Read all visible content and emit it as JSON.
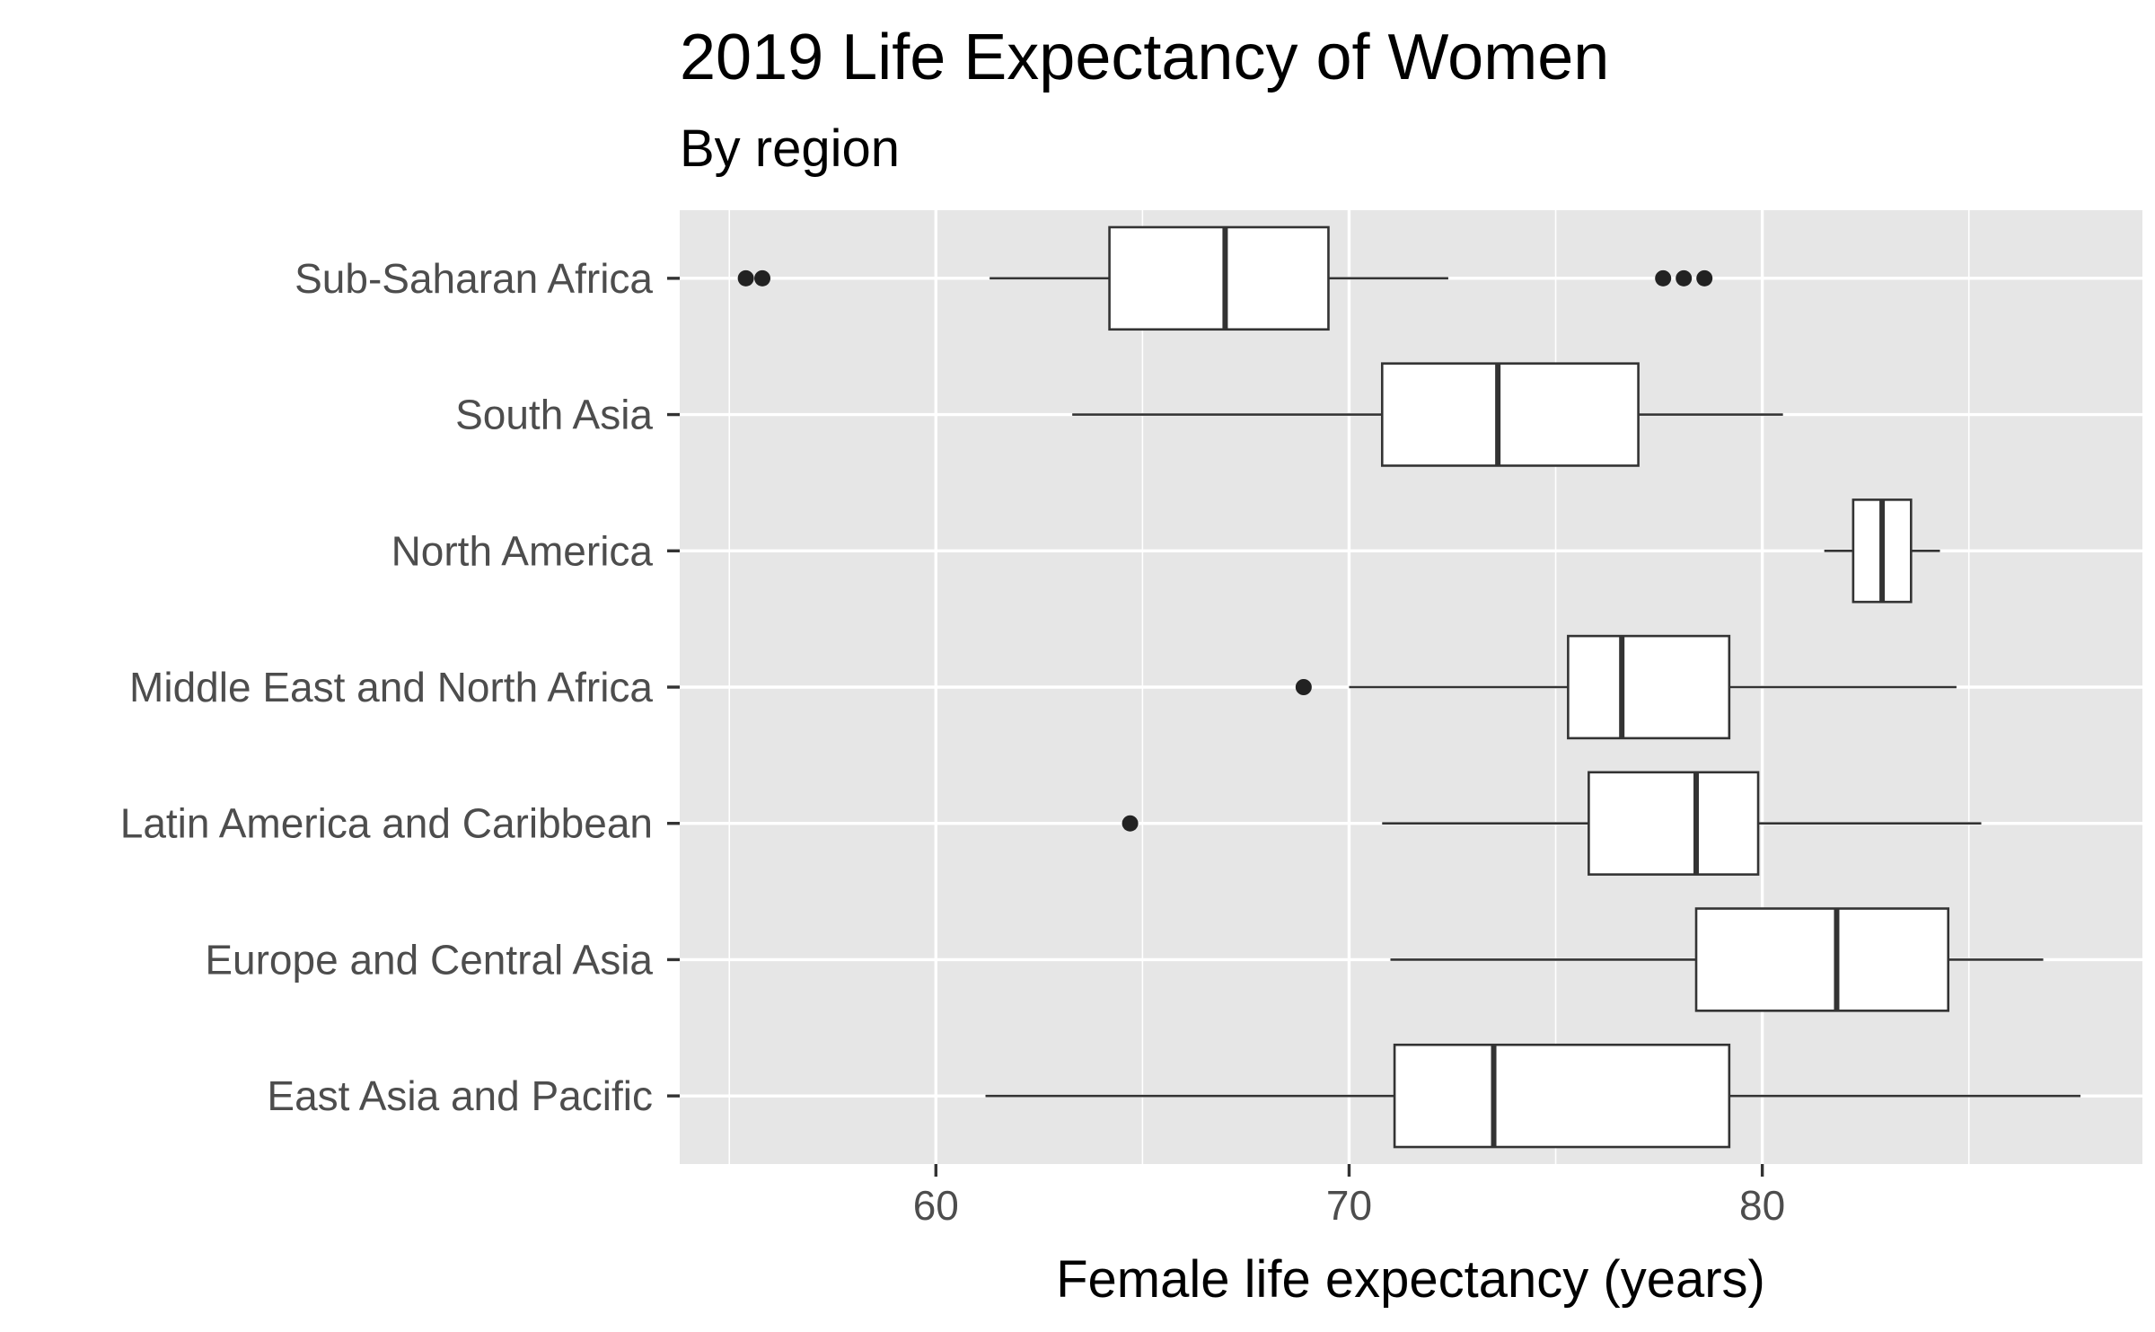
{
  "chart_data": {
    "type": "boxplot",
    "orientation": "horizontal",
    "title": "2019 Life Expectancy of Women",
    "subtitle": "By region",
    "xlabel": "Female life expectancy (years)",
    "ylabel": "",
    "xlim": [
      53.8,
      89.2
    ],
    "x_ticks": [
      60,
      70,
      80
    ],
    "x_tick_labels": [
      "60",
      "70",
      "80"
    ],
    "x_minor_ticks": [
      55,
      65,
      75,
      85
    ],
    "grid": true,
    "legend": "none",
    "categories": [
      "Sub-Saharan Africa",
      "South Asia",
      "North America",
      "Middle East and North Africa",
      "Latin America and Caribbean",
      "Europe and Central Asia",
      "East Asia and Pacific"
    ],
    "boxes": [
      {
        "category": "Sub-Saharan Africa",
        "whisker_low": 61.3,
        "q1": 64.2,
        "median": 67.0,
        "q3": 69.5,
        "whisker_high": 72.4,
        "outliers": [
          55.4,
          55.8,
          77.6,
          78.1,
          78.6
        ]
      },
      {
        "category": "South Asia",
        "whisker_low": 63.3,
        "q1": 70.8,
        "median": 73.6,
        "q3": 77.0,
        "whisker_high": 80.5,
        "outliers": []
      },
      {
        "category": "North America",
        "whisker_low": 81.5,
        "q1": 82.2,
        "median": 82.9,
        "q3": 83.6,
        "whisker_high": 84.3,
        "outliers": []
      },
      {
        "category": "Middle East and North Africa",
        "whisker_low": 70.0,
        "q1": 75.3,
        "median": 76.6,
        "q3": 79.2,
        "whisker_high": 84.7,
        "outliers": [
          68.9
        ]
      },
      {
        "category": "Latin America and Caribbean",
        "whisker_low": 70.8,
        "q1": 75.8,
        "median": 78.4,
        "q3": 79.9,
        "whisker_high": 85.3,
        "outliers": [
          64.7
        ]
      },
      {
        "category": "Europe and Central Asia",
        "whisker_low": 71.0,
        "q1": 78.4,
        "median": 81.8,
        "q3": 84.5,
        "whisker_high": 86.8,
        "outliers": []
      },
      {
        "category": "East Asia and Pacific",
        "whisker_low": 61.2,
        "q1": 71.1,
        "median": 73.5,
        "q3": 79.2,
        "whisker_high": 87.7,
        "outliers": []
      }
    ]
  },
  "style": {
    "panel_background": "#e6e6e6",
    "grid_color": "#ffffff",
    "box_fill": "#ffffff",
    "box_stroke": "#333333",
    "outlier_color": "#222222",
    "tick_color": "#333333",
    "tick_label_color": "#4d4d4d",
    "title_color": "#000000"
  }
}
